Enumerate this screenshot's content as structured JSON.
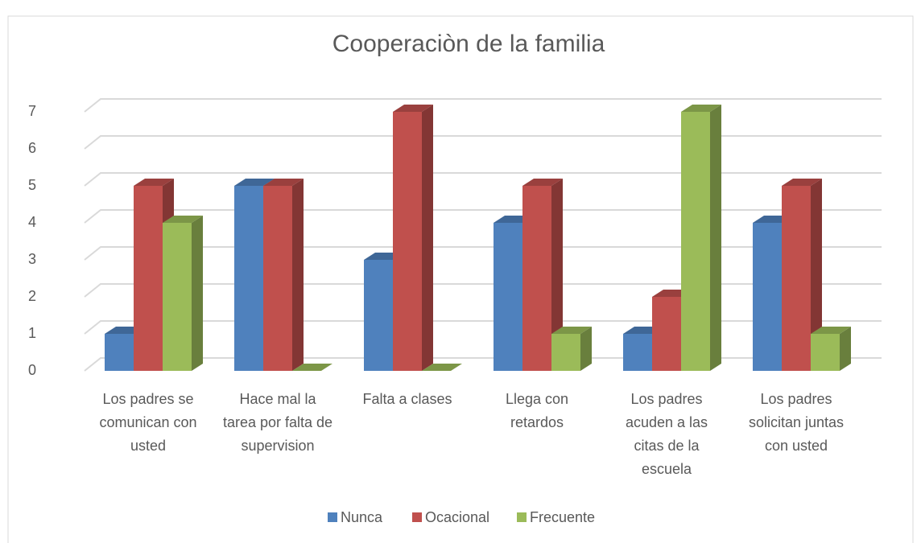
{
  "chart_data": {
    "type": "bar3d",
    "title": "Cooperaciòn de la familia",
    "categories": [
      "Los padres se comunican con usted",
      "Hace mal la tarea por falta de supervision",
      "Falta a clases",
      "Llega con retardos",
      "Los padres acuden a las citas de la escuela",
      "Los padres solicitan juntas con usted"
    ],
    "series": [
      {
        "name": "Nunca",
        "color": "#4f81bd",
        "values": [
          1,
          5,
          3,
          4,
          1,
          4
        ]
      },
      {
        "name": "Ocacional",
        "color": "#c0504d",
        "values": [
          5,
          5,
          7,
          5,
          2,
          5
        ]
      },
      {
        "name": "Frecuente",
        "color": "#9bbb59",
        "values": [
          4,
          0,
          0,
          1,
          7,
          1
        ]
      }
    ],
    "ylim": [
      0,
      7
    ],
    "yticks": [
      0,
      1,
      2,
      3,
      4,
      5,
      6,
      7
    ],
    "grid": true,
    "legend": "bottom"
  }
}
